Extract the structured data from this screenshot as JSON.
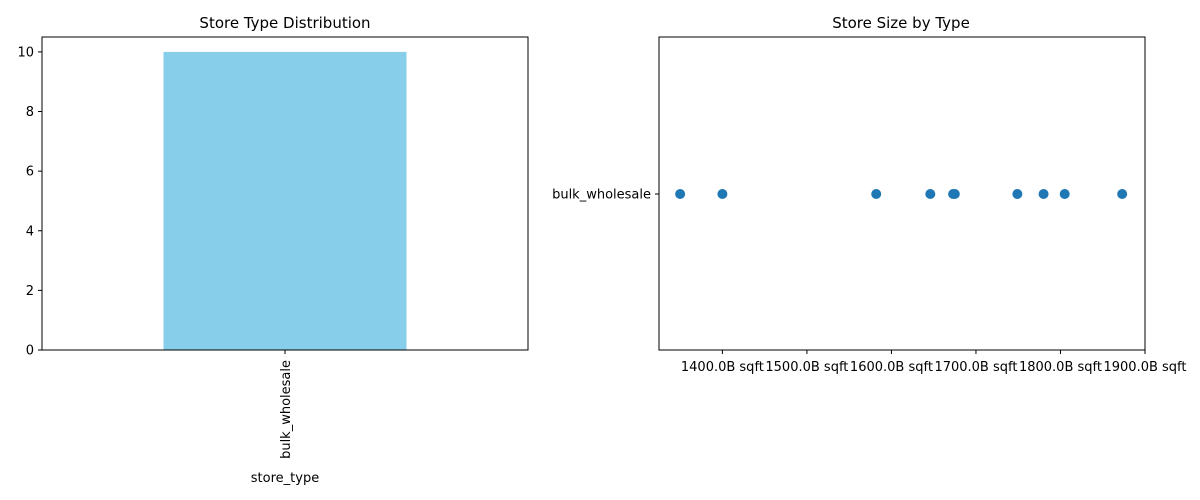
{
  "chart_data": [
    {
      "type": "bar",
      "title": "Store Type Distribution",
      "xlabel": "store_type",
      "ylabel": "",
      "categories": [
        "bulk_wholesale"
      ],
      "values": [
        10
      ],
      "ylim": [
        0,
        10.5
      ],
      "yticks": [
        0,
        2,
        4,
        6,
        8,
        10
      ],
      "bar_color": "#87ceeb",
      "grid": false
    },
    {
      "type": "scatter",
      "title": "Store Size by Type",
      "xlabel": "",
      "ylabel": "",
      "categories": [
        "bulk_wholesale"
      ],
      "x": [
        1350,
        1400,
        1582,
        1646,
        1673,
        1675,
        1749,
        1780,
        1805,
        1873
      ],
      "xlim": [
        1325,
        1900
      ],
      "xticks": [
        1400,
        1500,
        1600,
        1700,
        1800,
        1900
      ],
      "xtick_labels": [
        "1400.0B sqft",
        "1500.0B sqft",
        "1600.0B sqft",
        "1700.0B sqft",
        "1800.0B sqft",
        "1900.0B sqft"
      ],
      "point_color": "#1f77b4",
      "grid": false
    }
  ]
}
